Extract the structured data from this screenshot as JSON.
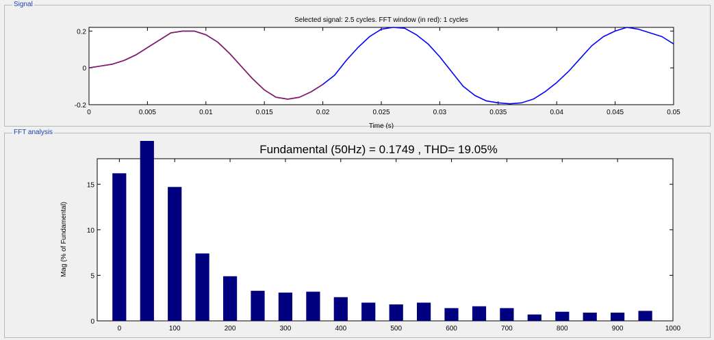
{
  "signal_panel": {
    "label": "Signal",
    "title": "Selected signal: 2.5 cycles. FFT window (in red): 1 cycles",
    "xlabel": "Time (s)"
  },
  "fft_panel": {
    "label": "FFT analysis",
    "title": "Fundamental (50Hz) = 0.1749 , THD= 19.05%",
    "ylabel": "Mag (% of Fundamental)"
  },
  "colors": {
    "signal": "#0000ff",
    "fft_window": "#8b1a5e",
    "bars": "#00007f"
  },
  "chart_data": [
    {
      "type": "line",
      "title": "Selected signal: 2.5 cycles. FFT window (in red): 1 cycles",
      "xlabel": "Time (s)",
      "ylabel": "",
      "xlim": [
        0,
        0.05
      ],
      "ylim": [
        -0.2,
        0.22
      ],
      "xticks": [
        0,
        0.005,
        0.01,
        0.015,
        0.02,
        0.025,
        0.03,
        0.035,
        0.04,
        0.045,
        0.05
      ],
      "yticks": [
        -0.2,
        0,
        0.2
      ],
      "series": [
        {
          "color": "#0000ff",
          "x": [
            0,
            0.001,
            0.002,
            0.003,
            0.004,
            0.005,
            0.006,
            0.007,
            0.008,
            0.009,
            0.01,
            0.011,
            0.012,
            0.013,
            0.014,
            0.015,
            0.016,
            0.017,
            0.018,
            0.019,
            0.02,
            0.021,
            0.022,
            0.023,
            0.024,
            0.025,
            0.026,
            0.027,
            0.028,
            0.029,
            0.03,
            0.031,
            0.032,
            0.033,
            0.034,
            0.035,
            0.036,
            0.037,
            0.038,
            0.039,
            0.04,
            0.041,
            0.042,
            0.043,
            0.044,
            0.045,
            0.046,
            0.047,
            0.048,
            0.049,
            0.05
          ],
          "y": [
            0,
            0.01,
            0.02,
            0.04,
            0.07,
            0.11,
            0.15,
            0.19,
            0.2,
            0.2,
            0.18,
            0.14,
            0.08,
            0.01,
            -0.06,
            -0.12,
            -0.16,
            -0.17,
            -0.16,
            -0.13,
            -0.09,
            -0.04,
            0.04,
            0.11,
            0.17,
            0.21,
            0.22,
            0.215,
            0.18,
            0.13,
            0.06,
            -0.02,
            -0.1,
            -0.15,
            -0.18,
            -0.19,
            -0.195,
            -0.19,
            -0.17,
            -0.13,
            -0.08,
            -0.02,
            0.05,
            0.12,
            0.17,
            0.2,
            0.22,
            0.21,
            0.19,
            0.17,
            0.13
          ]
        },
        {
          "color": "#8b1a5e",
          "x": [
            0,
            0.001,
            0.002,
            0.003,
            0.004,
            0.005,
            0.006,
            0.007,
            0.008,
            0.009,
            0.01,
            0.011,
            0.012,
            0.013,
            0.014,
            0.015,
            0.016,
            0.017,
            0.018,
            0.019,
            0.02
          ],
          "y": [
            0,
            0.01,
            0.02,
            0.04,
            0.07,
            0.11,
            0.15,
            0.19,
            0.2,
            0.2,
            0.18,
            0.14,
            0.08,
            0.01,
            -0.06,
            -0.12,
            -0.16,
            -0.17,
            -0.16,
            -0.13,
            -0.09
          ]
        }
      ]
    },
    {
      "type": "bar",
      "title": "Fundamental (50Hz) = 0.1749 , THD= 19.05%",
      "xlabel": "",
      "ylabel": "Mag (% of Fundamental)",
      "xlim": [
        -40,
        1000
      ],
      "ylim": [
        0,
        17.8
      ],
      "xticks": [
        0,
        100,
        200,
        300,
        400,
        500,
        600,
        700,
        800,
        900,
        1000
      ],
      "yticks": [
        0,
        5,
        10,
        15
      ],
      "x": [
        0,
        50,
        100,
        150,
        200,
        250,
        300,
        350,
        400,
        450,
        500,
        550,
        600,
        650,
        700,
        750,
        800,
        850,
        900,
        950
      ],
      "values": [
        16.2,
        19.8,
        14.7,
        7.4,
        4.9,
        3.3,
        3.1,
        3.2,
        2.6,
        2.0,
        1.8,
        2.0,
        1.4,
        1.6,
        1.4,
        0.7,
        1.0,
        0.9,
        0.9,
        1.1
      ]
    }
  ]
}
